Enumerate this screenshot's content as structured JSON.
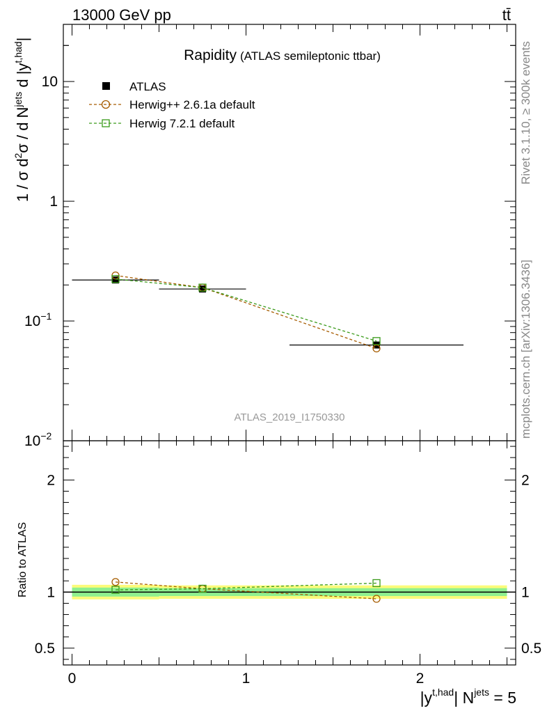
{
  "header": {
    "energy_label": "13000 GeV pp",
    "process_label": "tt̄"
  },
  "side_labels": {
    "rivet": "Rivet 3.1.10, ≥ 300k events",
    "mcplots": "mcplots.cern.ch [arXiv:1306.3436]"
  },
  "chart_data": [
    {
      "type": "line",
      "panel": "main",
      "title": "Rapidity",
      "subtitle": "(ATLAS semileptonic ttbar)",
      "watermark": "ATLAS_2019_I1750330",
      "yscale": "log",
      "ylim": [
        0.01,
        30
      ],
      "xlim": [
        -0.05,
        2.55
      ],
      "ylabel": {
        "main": "1 / σ d",
        "sup1": "2",
        "mid": "σ / d N",
        "sup2": "jets",
        "tail": " d |y",
        "sup3": "t,had",
        "end": "|"
      },
      "yticks": [
        {
          "value": 10,
          "label": "10"
        },
        {
          "value": 1,
          "label": "1"
        },
        {
          "value": 0.1,
          "label": "10",
          "exp": "−1"
        },
        {
          "value": 0.01,
          "label": "10",
          "exp": "−2"
        }
      ],
      "legend": {
        "position": "top-left",
        "entries": [
          "ATLAS",
          "Herwig++ 2.6.1a default",
          "Herwig 7.2.1 default"
        ]
      },
      "series": [
        {
          "name": "ATLAS",
          "color": "#000000",
          "marker": "filled-square",
          "x": [
            0.25,
            0.75,
            1.75
          ],
          "y": [
            0.22,
            0.185,
            0.063
          ],
          "xerr": [
            0.25,
            0.25,
            0.5
          ]
        },
        {
          "name": "Herwig++ 2.6.1a default",
          "color": "#a65c00",
          "marker": "open-circle",
          "dashed": true,
          "x": [
            0.25,
            0.75,
            1.75
          ],
          "y": [
            0.24,
            0.19,
            0.059
          ]
        },
        {
          "name": "Herwig 7.2.1 default",
          "color": "#3a9a1a",
          "marker": "open-square",
          "dashed": true,
          "x": [
            0.25,
            0.75,
            1.75
          ],
          "y": [
            0.224,
            0.19,
            0.068
          ]
        }
      ]
    },
    {
      "type": "line",
      "panel": "ratio",
      "ylabel": "Ratio to ATLAS",
      "xlabel": {
        "main": "|y",
        "sup1": "t,had",
        "mid": "| N",
        "sup2": "jets",
        "tail": " = 5"
      },
      "xlim": [
        -0.05,
        2.55
      ],
      "ylim": [
        0.35,
        2.35
      ],
      "xticks": [
        {
          "value": 0,
          "label": "0"
        },
        {
          "value": 1,
          "label": "1"
        },
        {
          "value": 2,
          "label": "2"
        }
      ],
      "yticks": [
        {
          "value": 0.5,
          "label": "0.5"
        },
        {
          "value": 1,
          "label": "1"
        },
        {
          "value": 2,
          "label": "2"
        }
      ],
      "bands": [
        {
          "x0": 0,
          "x1": 0.5,
          "yellow": [
            0.935,
            1.065
          ],
          "green": [
            0.96,
            1.04
          ]
        },
        {
          "x0": 0.5,
          "x1": 1.0,
          "yellow": [
            0.94,
            1.06
          ],
          "green": [
            0.965,
            1.035
          ]
        },
        {
          "x0": 1.0,
          "x1": 2.5,
          "yellow": [
            0.94,
            1.06
          ],
          "green": [
            0.965,
            1.035
          ]
        }
      ],
      "series": [
        {
          "name": "Herwig++ 2.6.1a default",
          "color": "#a65c00",
          "marker": "open-circle",
          "dashed": true,
          "x": [
            0.25,
            0.75,
            1.75
          ],
          "y": [
            1.09,
            1.03,
            0.94
          ]
        },
        {
          "name": "Herwig 7.2.1 default",
          "color": "#3a9a1a",
          "marker": "open-square",
          "dashed": true,
          "x": [
            0.25,
            0.75,
            1.75
          ],
          "y": [
            1.02,
            1.03,
            1.08
          ]
        }
      ]
    }
  ]
}
